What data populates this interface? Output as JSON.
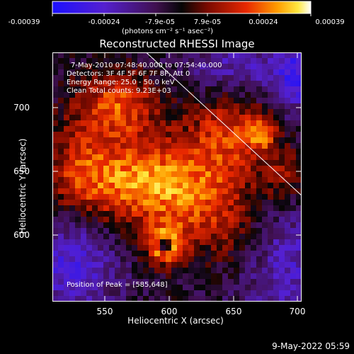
{
  "colorbar": {
    "ticks": [
      "-0.00039",
      "-0.00024",
      "-7.9e-05",
      "7.9e-05",
      "0.00024",
      "0.00039"
    ],
    "units_label": "(photons cm⁻² s⁻¹ asec⁻²)"
  },
  "header": {
    "title": "Reconstructed RHESSI Image"
  },
  "info": {
    "time_range": "7-May-2010 07:48:40.000 to 07:54:40.000",
    "detectors": "Detectors: 3F 4F 5F 6F 7F 8F, Att 0",
    "energy": "Energy Range: 25.0 - 50.0 keV",
    "clean": "Clean     Total counts: 9.23E+03",
    "peak": "Position of Peak = [585,648]"
  },
  "footer": {
    "timestamp": "9-May-2022 05:59"
  },
  "chart_data": {
    "type": "heatmap",
    "title": "Reconstructed RHESSI Image",
    "xlabel": "Heliocentric X (arcsec)",
    "ylabel": "Heliocentric Y (arcsec)",
    "xlim": [
      509,
      703
    ],
    "ylim": [
      558,
      753
    ],
    "xticks": [
      550,
      600,
      650,
      700
    ],
    "yticks": [
      600,
      650,
      700
    ],
    "color_range": [
      -0.00039,
      0.00039
    ],
    "colormap": "blue-purple-red-yellow-white",
    "peak_position": [
      585,
      648
    ],
    "limb_line": [
      [
        582,
        753
      ],
      [
        703,
        641
      ]
    ],
    "sources": [
      {
        "x": 580,
        "y": 652,
        "sx": 40,
        "sy": 24,
        "amp": 0.85
      },
      {
        "x": 560,
        "y": 712,
        "sx": 22,
        "sy": 18,
        "amp": 0.65
      },
      {
        "x": 645,
        "y": 690,
        "sx": 22,
        "sy": 28,
        "amp": 0.55
      },
      {
        "x": 672,
        "y": 690,
        "sx": 8,
        "sy": 10,
        "amp": 0.6
      },
      {
        "x": 597,
        "y": 602,
        "sx": 12,
        "sy": 12,
        "amp": 0.55
      },
      {
        "x": 530,
        "y": 660,
        "sx": 18,
        "sy": 30,
        "amp": 0.35
      },
      {
        "x": 630,
        "y": 625,
        "sx": 28,
        "sy": 22,
        "amp": 0.35
      },
      {
        "x": 690,
        "y": 655,
        "sx": 14,
        "sy": 18,
        "amp": 0.4
      },
      {
        "x": 660,
        "y": 600,
        "sx": 20,
        "sy": 20,
        "amp": 0.15
      }
    ],
    "negative_regions": [
      {
        "x": 525,
        "y": 590,
        "sx": 25,
        "sy": 30,
        "amp": -0.55
      },
      {
        "x": 690,
        "y": 590,
        "sx": 25,
        "sy": 40,
        "amp": -0.45
      },
      {
        "x": 650,
        "y": 740,
        "sx": 25,
        "sy": 18,
        "amp": -0.45
      },
      {
        "x": 700,
        "y": 735,
        "sx": 15,
        "sy": 20,
        "amp": -0.6
      },
      {
        "x": 597,
        "y": 602,
        "sx": 3,
        "sy": 3,
        "amp": -0.9
      }
    ]
  }
}
